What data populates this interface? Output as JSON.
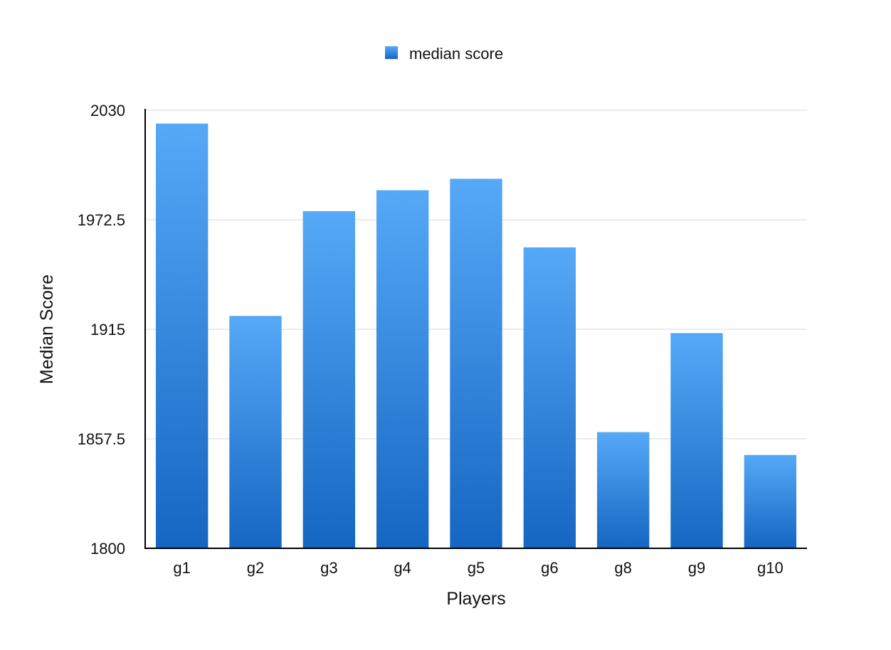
{
  "chart_data": {
    "type": "bar",
    "title": "",
    "xlabel": "Players",
    "ylabel": "Median Score",
    "categories": [
      "g1",
      "g2",
      "g3",
      "g4",
      "g5",
      "g6",
      "g8",
      "g9",
      "g10"
    ],
    "series": [
      {
        "name": "median score",
        "values": [
          2023,
          1922,
          1977,
          1988,
          1994,
          1958,
          1861,
          1913,
          1849
        ]
      }
    ],
    "ylim": [
      1800,
      2030
    ],
    "yticks": [
      "1800",
      "1857.5",
      "1915",
      "1972.5",
      "2030"
    ],
    "grid": true,
    "legend": "top-center",
    "colors": {
      "bar_top": "#56a9f7",
      "bar_bottom": "#1466c2",
      "grid": "#d9d9d9",
      "axis": "#000000"
    }
  }
}
